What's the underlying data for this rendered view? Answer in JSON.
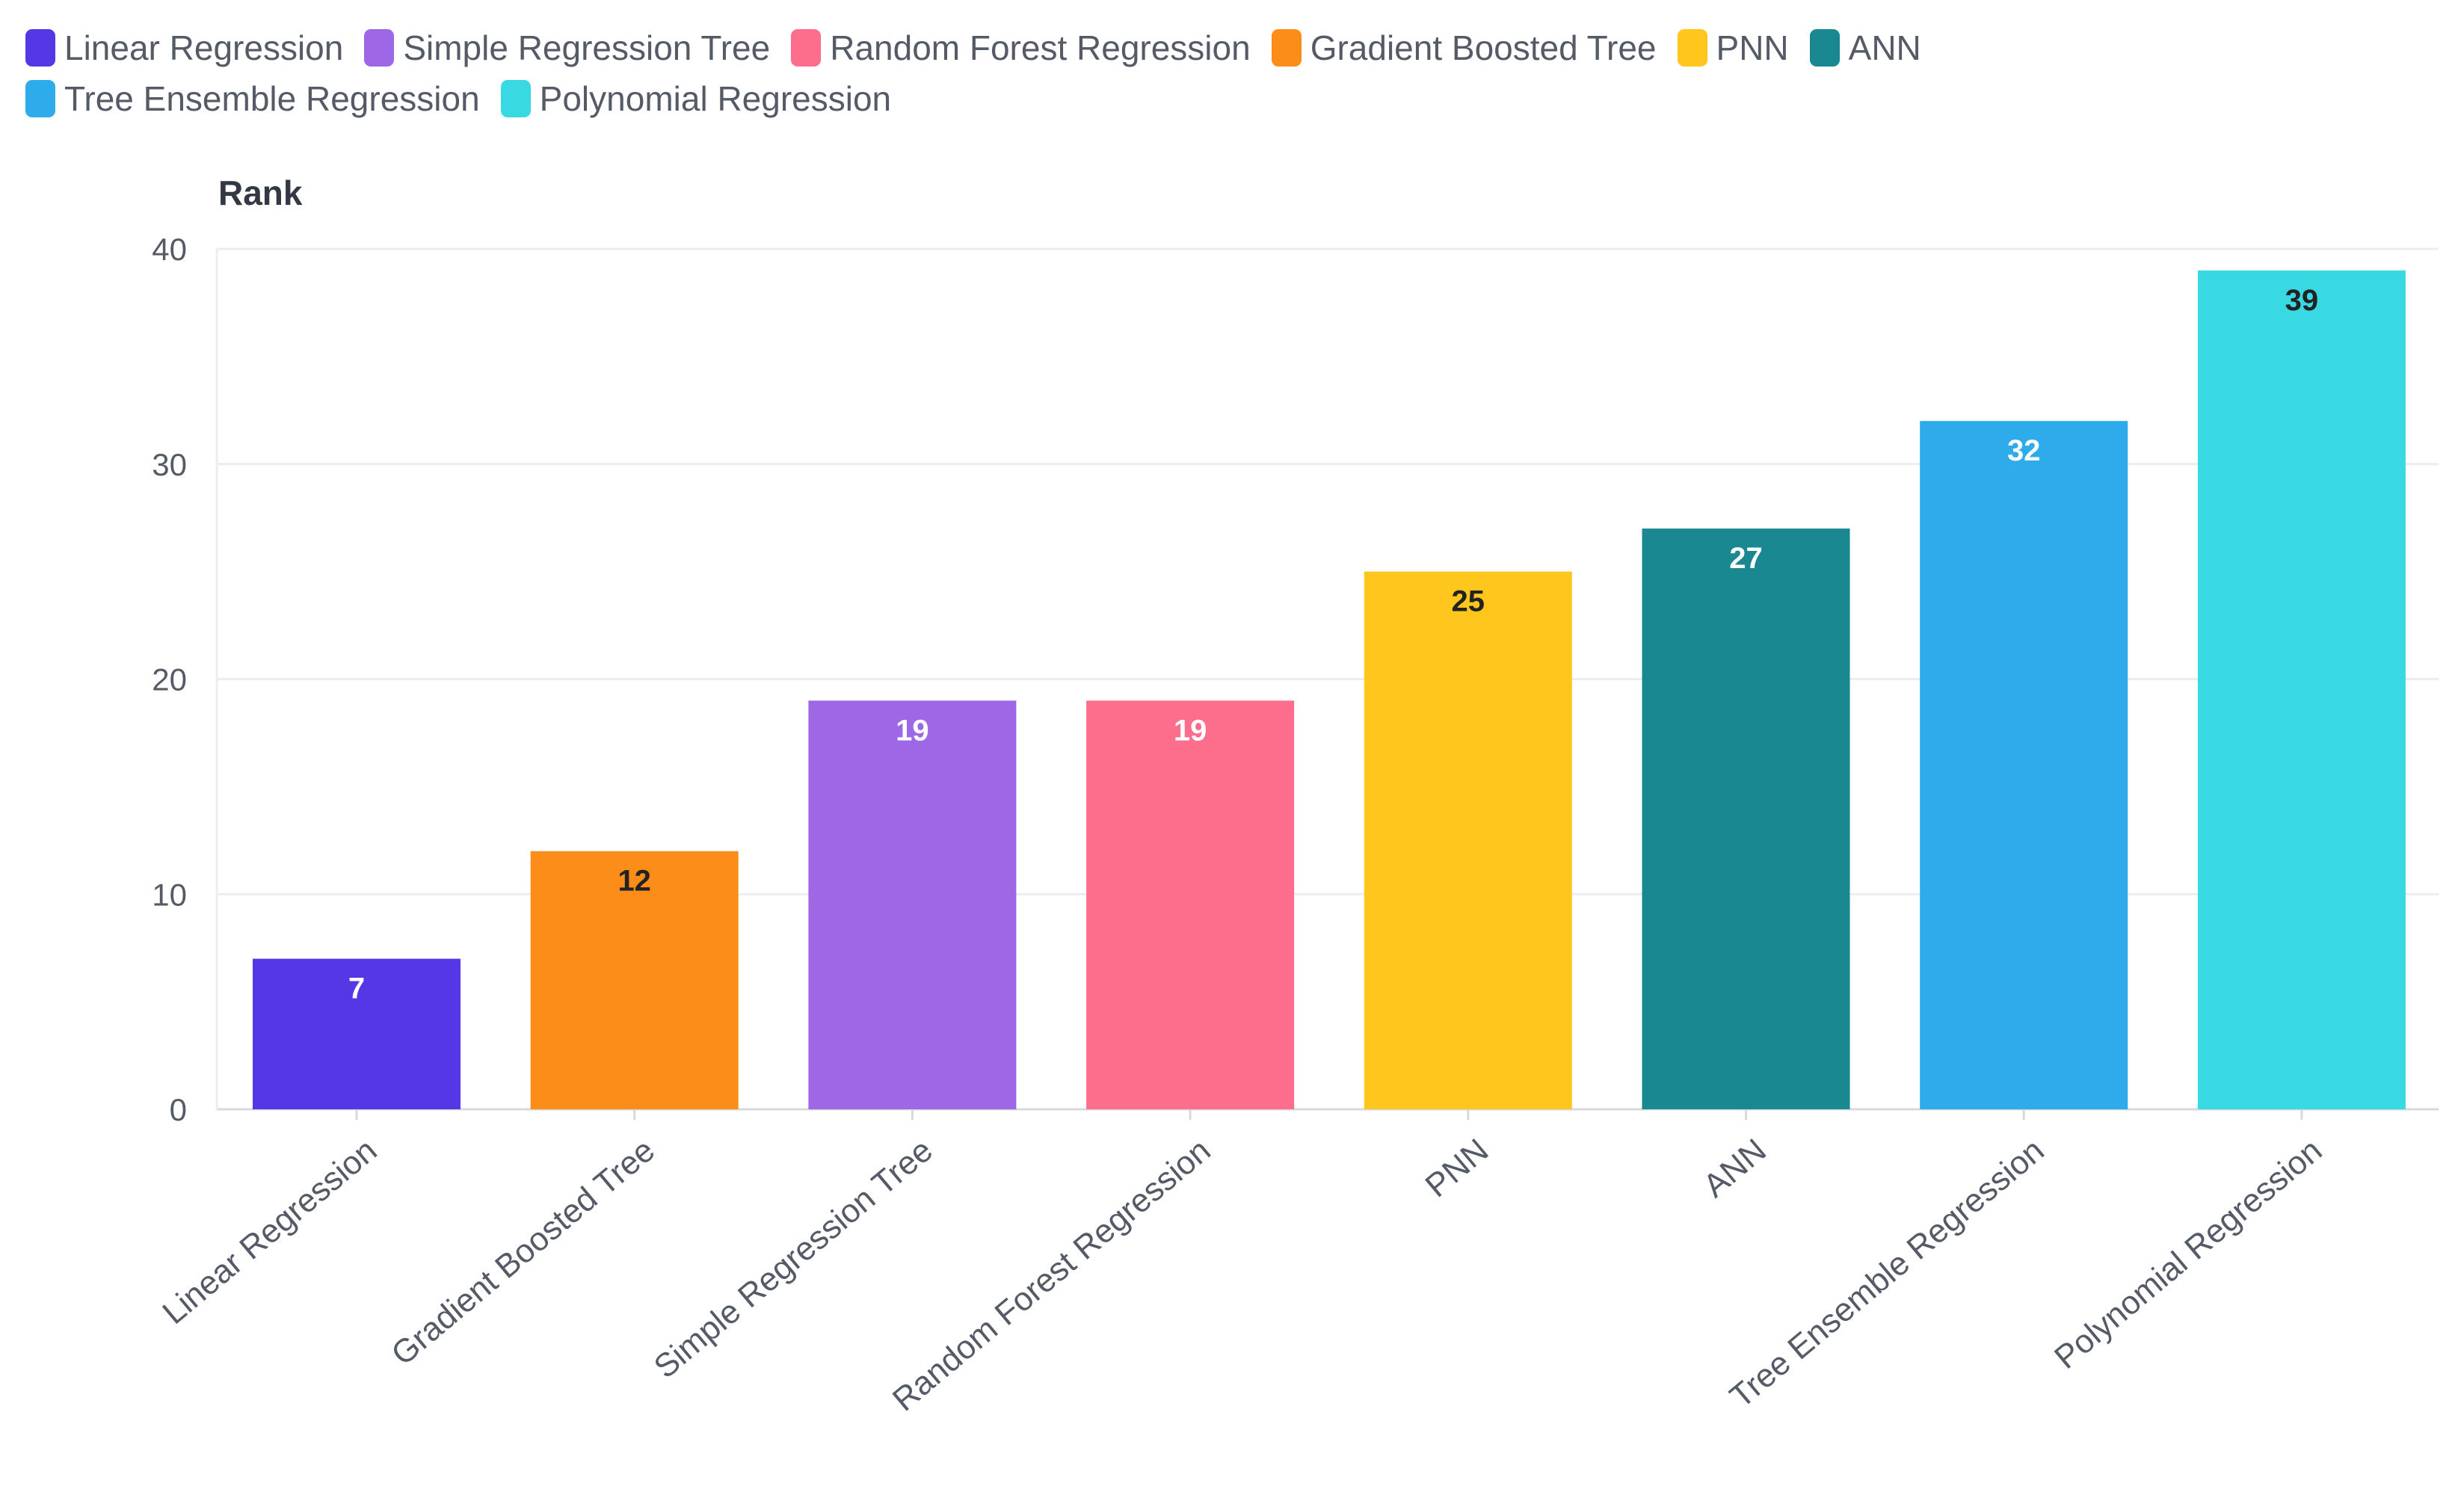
{
  "chart_data": {
    "type": "bar",
    "ylabel": "Rank",
    "ylim": [
      0,
      40
    ],
    "yticks": [
      0,
      10,
      20,
      30,
      40
    ],
    "categories": [
      "Linear Regression",
      "Gradient Boosted Tree",
      "Simple Regression Tree",
      "Random Forest Regression",
      "PNN",
      "ANN",
      "Tree Ensemble Regression",
      "Polynomial Regression"
    ],
    "values": [
      7,
      12,
      19,
      19,
      25,
      27,
      32,
      39
    ],
    "colors": [
      "#5537e6",
      "#fb8d18",
      "#9d67e6",
      "#fd6e8c",
      "#ffc61e",
      "#198891",
      "#2dabeb",
      "#39d9e3"
    ],
    "label_colors": [
      "#ffffff",
      "#222222",
      "#ffffff",
      "#ffffff",
      "#222222",
      "#ffffff",
      "#ffffff",
      "#222222"
    ],
    "legend": [
      {
        "label": "Linear Regression",
        "color": "#5537e6"
      },
      {
        "label": "Simple Regression Tree",
        "color": "#9d67e6"
      },
      {
        "label": "Random Forest Regression",
        "color": "#fd6e8c"
      },
      {
        "label": "Gradient Boosted Tree",
        "color": "#fb8d18"
      },
      {
        "label": "PNN",
        "color": "#ffc61e"
      },
      {
        "label": "ANN",
        "color": "#198891"
      },
      {
        "label": "Tree Ensemble Regression",
        "color": "#2dabeb"
      },
      {
        "label": "Polynomial Regression",
        "color": "#39d9e3"
      }
    ]
  }
}
